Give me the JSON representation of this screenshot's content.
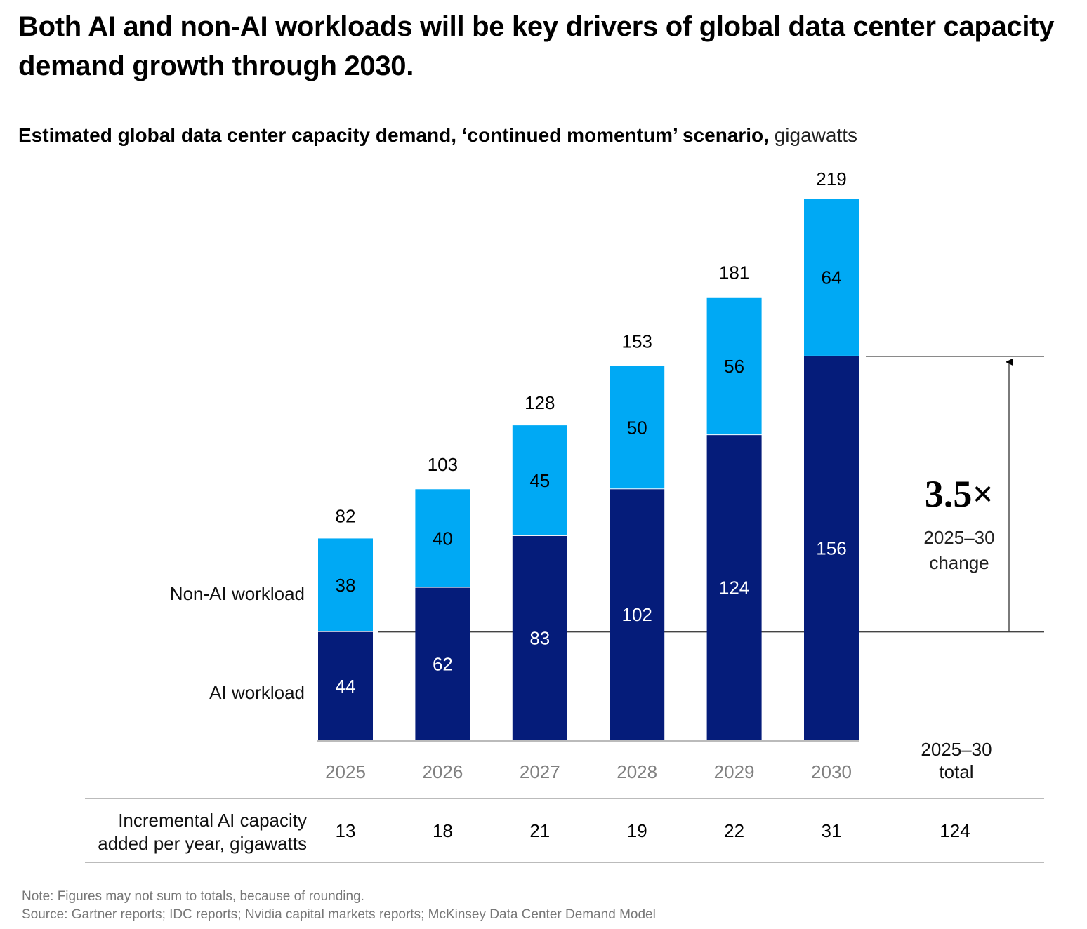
{
  "header": {
    "title": "Both AI and non-AI workloads will be key drivers of global data center capacity demand growth through 2030.",
    "subtitle_bold": "Estimated global data center capacity demand, ‘continued momentum’ scenario,",
    "subtitle_unit": " gigawatts"
  },
  "chart_data": {
    "type": "bar",
    "stacked": true,
    "title": "Estimated global data center capacity demand, ‘continued momentum’ scenario",
    "ylabel": "gigawatts",
    "xlabel": "",
    "categories": [
      "2025",
      "2026",
      "2027",
      "2028",
      "2029",
      "2030"
    ],
    "series": [
      {
        "name": "AI workload",
        "color": "#051c7a",
        "values": [
          44,
          62,
          83,
          102,
          124,
          156
        ]
      },
      {
        "name": "Non-AI workload",
        "color": "#00a9f4",
        "values": [
          38,
          40,
          45,
          50,
          56,
          64
        ]
      }
    ],
    "totals": [
      82,
      103,
      128,
      153,
      181,
      219
    ],
    "ylim": [
      0,
      219
    ],
    "grid": false,
    "legend": "left (inline labels beside first bar)",
    "annotation": {
      "multiplier": "3.5×",
      "label_line1": "2025–30",
      "label_line2": "change",
      "from_value": 44,
      "to_value": 156
    },
    "table": {
      "row_label_line1": "Incremental AI capacity",
      "row_label_line2": "added per year, gigawatts",
      "values": [
        "13",
        "18",
        "21",
        "19",
        "22",
        "31"
      ],
      "total_header_line1": "2025–30",
      "total_header_line2": "total",
      "total_value": "124"
    }
  },
  "footer": {
    "note": "Note: Figures may not sum to totals, because of rounding.",
    "source": "Source: Gartner reports; IDC reports; Nvidia capital markets reports; McKinsey Data Center Demand Model"
  }
}
